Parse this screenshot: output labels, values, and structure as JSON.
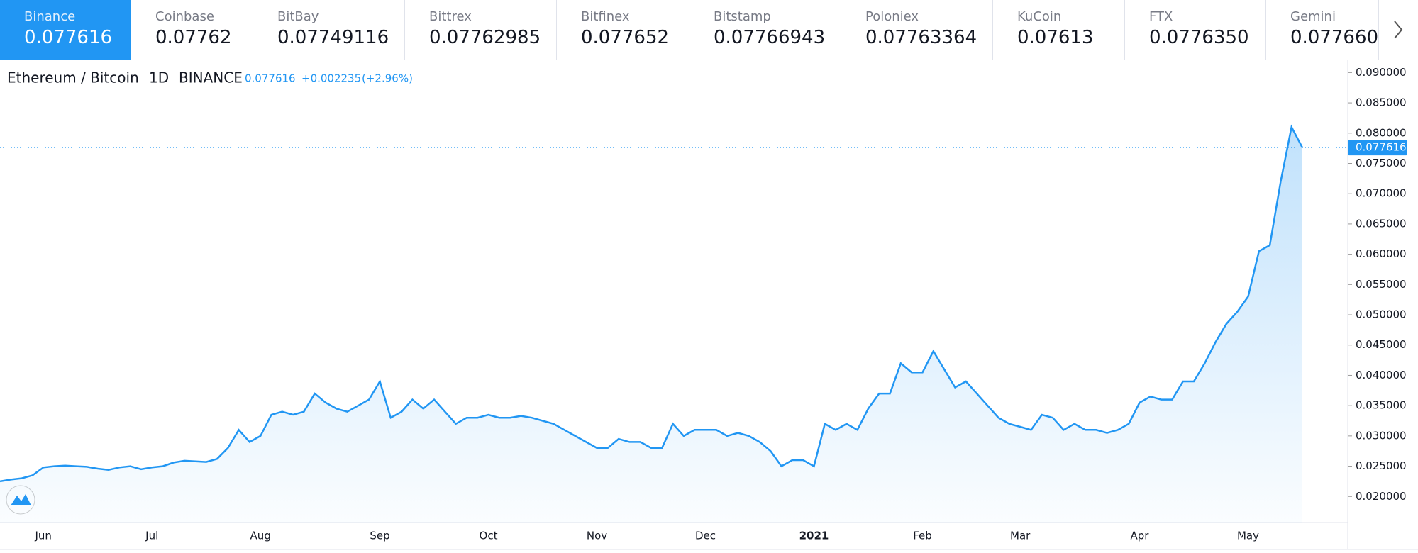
{
  "exchanges": [
    {
      "name": "Binance",
      "price": "0.077616"
    },
    {
      "name": "Coinbase",
      "price": "0.07762"
    },
    {
      "name": "BitBay",
      "price": "0.07749116"
    },
    {
      "name": "Bittrex",
      "price": "0.07762985"
    },
    {
      "name": "Bitfinex",
      "price": "0.077652"
    },
    {
      "name": "Bitstamp",
      "price": "0.07766943"
    },
    {
      "name": "Poloniex",
      "price": "0.07763364"
    },
    {
      "name": "KuCoin",
      "price": "0.07613"
    },
    {
      "name": "FTX",
      "price": "0.0776350"
    },
    {
      "name": "Gemini",
      "price": "0.077660"
    }
  ],
  "chart_data": {
    "type": "area",
    "symbol": "Ethereum / Bitcoin",
    "interval": "1D",
    "exchange": "BINANCE",
    "last": "0.077616",
    "change": "+0.002235",
    "change_pct": "(+2.96%)",
    "color": "#2196f3",
    "categories": [
      null,
      null,
      null,
      null,
      "Jun",
      null,
      null,
      null,
      null,
      null,
      null,
      null,
      null,
      null,
      "Jul",
      null,
      null,
      null,
      null,
      null,
      null,
      null,
      null,
      null,
      "Aug",
      null,
      null,
      null,
      null,
      null,
      null,
      null,
      null,
      null,
      null,
      "Sep",
      null,
      null,
      null,
      null,
      null,
      null,
      null,
      null,
      null,
      "Oct",
      null,
      null,
      null,
      null,
      null,
      null,
      null,
      null,
      null,
      "Nov",
      null,
      null,
      null,
      null,
      null,
      null,
      null,
      null,
      null,
      "Dec",
      null,
      null,
      null,
      null,
      null,
      null,
      null,
      null,
      null,
      "2021",
      null,
      null,
      null,
      null,
      null,
      null,
      null,
      null,
      null,
      "Feb",
      null,
      null,
      null,
      null,
      null,
      null,
      null,
      null,
      "Mar",
      null,
      null,
      null,
      null,
      null,
      null,
      null,
      null,
      null,
      null,
      "Apr",
      null,
      null,
      null,
      null,
      null,
      null,
      null,
      null,
      null,
      "May",
      null,
      null,
      null,
      null,
      null
    ],
    "values": [
      0.0225,
      0.0228,
      0.023,
      0.0235,
      0.0248,
      0.025,
      0.0251,
      0.025,
      0.0249,
      0.0246,
      0.0244,
      0.0248,
      0.025,
      0.0245,
      0.0248,
      0.025,
      0.0256,
      0.0259,
      0.0258,
      0.0257,
      0.0262,
      0.028,
      0.031,
      0.029,
      0.03,
      0.0335,
      0.034,
      0.0335,
      0.034,
      0.037,
      0.0355,
      0.0345,
      0.034,
      0.035,
      0.036,
      0.039,
      0.033,
      0.034,
      0.036,
      0.0345,
      0.036,
      0.034,
      0.032,
      0.033,
      0.033,
      0.0335,
      0.033,
      0.033,
      0.0333,
      0.033,
      0.0325,
      0.032,
      0.031,
      0.03,
      0.029,
      0.028,
      0.028,
      0.0295,
      0.029,
      0.029,
      0.028,
      0.028,
      0.032,
      0.03,
      0.031,
      0.031,
      0.031,
      0.03,
      0.0305,
      0.03,
      0.029,
      0.0275,
      0.025,
      0.026,
      0.026,
      0.025,
      0.032,
      0.031,
      0.032,
      0.031,
      0.0345,
      0.037,
      0.037,
      0.042,
      0.0405,
      0.0405,
      0.044,
      0.041,
      0.038,
      0.039,
      0.037,
      0.035,
      0.033,
      0.032,
      0.0315,
      0.031,
      0.0335,
      0.033,
      0.031,
      0.032,
      0.031,
      0.031,
      0.0305,
      0.031,
      0.032,
      0.0355,
      0.0365,
      0.036,
      0.036,
      0.039,
      0.039,
      0.042,
      0.0455,
      0.0485,
      0.0505,
      0.053,
      0.0605,
      0.0615,
      0.072,
      0.081,
      0.077616
    ],
    "price_line": {
      "value": 0.077616,
      "label": "0.077616"
    },
    "ylim": [
      0.0157,
      0.0918
    ],
    "yticks": [
      {
        "value": 0.02,
        "label": "0.020000"
      },
      {
        "value": 0.025,
        "label": "0.025000"
      },
      {
        "value": 0.03,
        "label": "0.030000"
      },
      {
        "value": 0.035,
        "label": "0.035000"
      },
      {
        "value": 0.04,
        "label": "0.040000"
      },
      {
        "value": 0.045,
        "label": "0.045000"
      },
      {
        "value": 0.05,
        "label": "0.050000"
      },
      {
        "value": 0.055,
        "label": "0.055000"
      },
      {
        "value": 0.06,
        "label": "0.060000"
      },
      {
        "value": 0.065,
        "label": "0.065000"
      },
      {
        "value": 0.07,
        "label": "0.070000"
      },
      {
        "value": 0.075,
        "label": "0.075000"
      },
      {
        "value": 0.08,
        "label": "0.080000"
      },
      {
        "value": 0.085,
        "label": "0.085000"
      },
      {
        "value": 0.09,
        "label": "0.090000"
      }
    ]
  }
}
